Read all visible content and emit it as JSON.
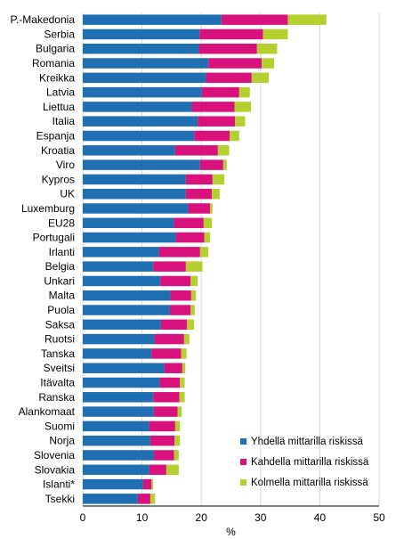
{
  "chart_data": {
    "type": "bar",
    "orientation": "horizontal",
    "stacked": true,
    "xlabel": "%",
    "xlim": [
      0,
      50
    ],
    "xticks": [
      0,
      10,
      20,
      30,
      40,
      50
    ],
    "grid": true,
    "legend_position": "bottom-right",
    "categories": [
      "P.-Makedonia",
      "Serbia",
      "Bulgaria",
      "Romania",
      "Kreikka",
      "Latvia",
      "Liettua",
      "Italia",
      "Espanja",
      "Kroatia",
      "Viro",
      "Kypros",
      "UK",
      "Luxemburg",
      "EU28",
      "Portugali",
      "Irlanti",
      "Belgia",
      "Unkari",
      "Malta",
      "Puola",
      "Saksa",
      "Ruotsi",
      "Tanska",
      "Sveitsi",
      "Itävalta",
      "Ranska",
      "Alankomaat",
      "Suomi",
      "Norja",
      "Slovenia",
      "Slovakia",
      "Islanti*",
      "Tsekki"
    ],
    "series": [
      {
        "name": "Yhdellä mittarilla riskissä",
        "color": "#1f6fb2",
        "values": [
          23.4,
          19.7,
          19.6,
          21.2,
          20.8,
          20.1,
          18.4,
          19.4,
          18.8,
          15.6,
          19.8,
          17.4,
          17.4,
          17.8,
          15.4,
          15.7,
          12.9,
          11.9,
          13.1,
          14.8,
          14.7,
          13.2,
          12.1,
          11.6,
          13.8,
          13.0,
          11.9,
          12.0,
          11.2,
          11.4,
          12.0,
          11.2,
          10.2,
          9.3
        ]
      },
      {
        "name": "Kahdella mittarilla riskissä",
        "color": "#d8117d",
        "values": [
          11.2,
          10.7,
          9.8,
          9.0,
          7.7,
          6.3,
          7.2,
          6.3,
          6.0,
          7.2,
          3.9,
          4.5,
          4.4,
          3.7,
          5.0,
          4.8,
          6.9,
          5.5,
          5.1,
          3.5,
          3.5,
          4.4,
          5.0,
          5.0,
          3.0,
          3.4,
          4.4,
          4.0,
          4.4,
          4.1,
          3.4,
          2.9,
          1.4,
          2.1
        ]
      },
      {
        "name": "Kolmella mittarilla riskissä",
        "color": "#b5cf2f",
        "values": [
          6.5,
          4.2,
          3.4,
          2.1,
          2.9,
          1.8,
          2.8,
          1.7,
          1.6,
          1.9,
          0.6,
          2.0,
          1.3,
          0.4,
          1.4,
          1.0,
          1.4,
          2.8,
          1.2,
          0.8,
          0.7,
          1.2,
          0.9,
          0.9,
          0.5,
          0.8,
          0.9,
          0.7,
          0.8,
          0.9,
          0.8,
          2.1,
          0.3,
          0.8
        ]
      }
    ]
  }
}
